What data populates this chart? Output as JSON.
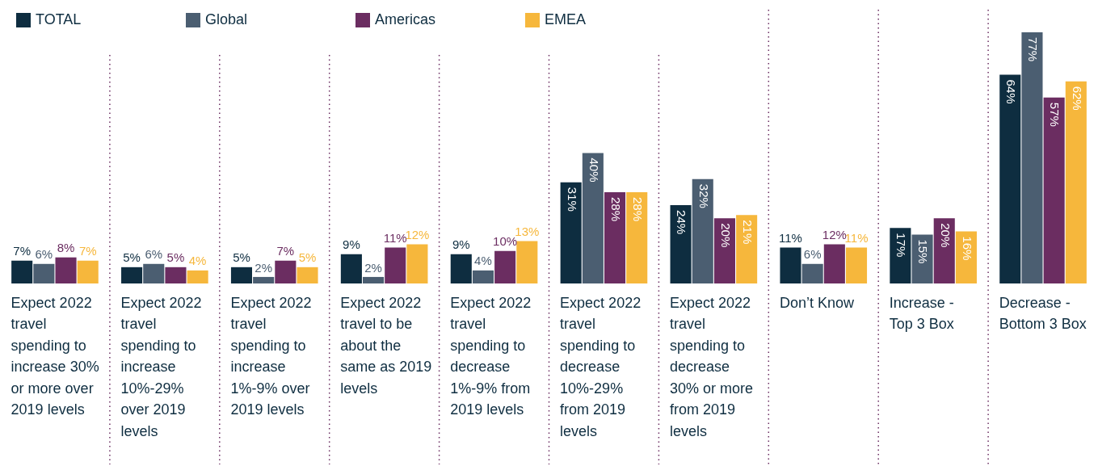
{
  "chart_data": {
    "type": "bar",
    "categories": [
      "Expect 2022 travel spending to increase 30% or more over 2019 levels",
      "Expect 2022 travel spending to increase 10%-29% over 2019 levels",
      "Expect 2022 travel spending to increase 1%-9% over 2019 levels",
      "Expect 2022 travel to be about the same as 2019 levels",
      "Expect 2022 travel spending to decrease 1%-9% from 2019 levels",
      "Expect 2022 travel spending to decrease 10%-29% from 2019 levels",
      "Expect 2022 travel spending to decrease 30% or more from 2019 levels",
      "Don’t Know",
      "Increase - Top 3 Box",
      "Decrease - Bottom 3 Box"
    ],
    "series": [
      {
        "name": "TOTAL",
        "color": "#0e2d40",
        "values": [
          7,
          5,
          5,
          9,
          9,
          31,
          24,
          11,
          17,
          64
        ],
        "value_labels": [
          "7%",
          "5%",
          "5%",
          "9%",
          "9%",
          "31%",
          "24%",
          "11%",
          "17%",
          "64%"
        ]
      },
      {
        "name": "Global",
        "color": "#4b5e71",
        "values": [
          6,
          6,
          2,
          2,
          4,
          40,
          32,
          6,
          15,
          77
        ],
        "value_labels": [
          "6%",
          "6%",
          "2%",
          "2%",
          "4%",
          "40%",
          "32%",
          "6%",
          "15%",
          "77%"
        ]
      },
      {
        "name": "Americas",
        "color": "#6b2d61",
        "values": [
          8,
          5,
          7,
          11,
          10,
          28,
          20,
          12,
          20,
          57
        ],
        "value_labels": [
          "8%",
          "5%",
          "7%",
          "11%",
          "10%",
          "28%",
          "20%",
          "12%",
          "20%",
          "57%"
        ]
      },
      {
        "name": "EMEA",
        "color": "#f6b73c",
        "values": [
          7,
          4,
          5,
          12,
          13,
          28,
          21,
          11,
          16,
          62
        ],
        "value_labels": [
          "7%",
          "4%",
          "5%",
          "12%",
          "13%",
          "28%",
          "21%",
          "11%",
          "16%",
          "62%"
        ]
      }
    ],
    "grid": "x",
    "legend": "top left",
    "tick_labels": "x"
  }
}
